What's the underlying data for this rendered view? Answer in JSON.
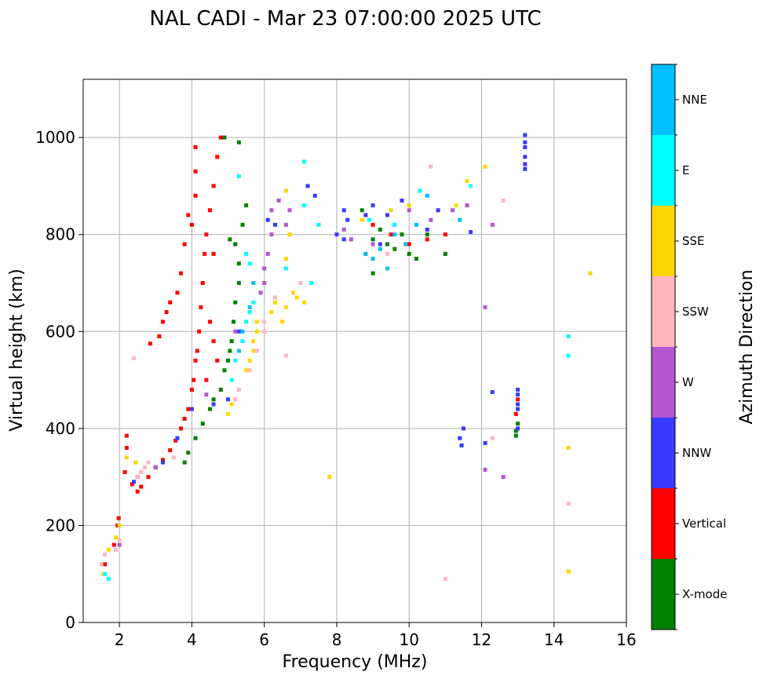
{
  "chart_data": {
    "type": "scatter",
    "title": "NAL CADI - Mar 23 07:00:00 2025 UTC",
    "xlabel": "Frequency (MHz)",
    "ylabel": "Virtual height (km)",
    "xlim": [
      1,
      16
    ],
    "ylim": [
      0,
      1120
    ],
    "xticks": [
      2,
      4,
      6,
      8,
      10,
      12,
      14,
      16
    ],
    "yticks": [
      0,
      200,
      400,
      600,
      800,
      1000
    ],
    "grid": true,
    "colorbar": {
      "label": "Azimuth Direction",
      "categories": [
        {
          "name": "X-mode",
          "color": "#008000"
        },
        {
          "name": "Vertical",
          "color": "#ff0000"
        },
        {
          "name": "NNW",
          "color": "#3a3aff"
        },
        {
          "name": "W",
          "color": "#b455d2"
        },
        {
          "name": "SSW",
          "color": "#ffb6c1"
        },
        {
          "name": "SSE",
          "color": "#ffd700"
        },
        {
          "name": "E",
          "color": "#00ffff"
        },
        {
          "name": "NNE",
          "color": "#00bfff"
        }
      ]
    },
    "series": [
      {
        "name": "Vertical",
        "points": [
          [
            1.6,
            120
          ],
          [
            1.85,
            160
          ],
          [
            1.95,
            200
          ],
          [
            1.98,
            215
          ],
          [
            2.15,
            310
          ],
          [
            2.2,
            360
          ],
          [
            2.2,
            385
          ],
          [
            2.35,
            285
          ],
          [
            2.5,
            270
          ],
          [
            2.6,
            280
          ],
          [
            2.8,
            300
          ],
          [
            3.0,
            320
          ],
          [
            3.2,
            335
          ],
          [
            3.4,
            355
          ],
          [
            3.55,
            375
          ],
          [
            3.7,
            400
          ],
          [
            3.8,
            420
          ],
          [
            3.9,
            440
          ],
          [
            4.0,
            480
          ],
          [
            4.05,
            500
          ],
          [
            4.1,
            540
          ],
          [
            4.15,
            560
          ],
          [
            4.2,
            600
          ],
          [
            4.25,
            650
          ],
          [
            4.3,
            700
          ],
          [
            4.35,
            760
          ],
          [
            4.4,
            800
          ],
          [
            4.5,
            850
          ],
          [
            4.6,
            900
          ],
          [
            4.7,
            960
          ],
          [
            4.8,
            1000
          ],
          [
            4.1,
            880
          ],
          [
            4.1,
            930
          ],
          [
            4.1,
            980
          ],
          [
            4.0,
            820
          ],
          [
            3.9,
            840
          ],
          [
            3.8,
            780
          ],
          [
            3.7,
            720
          ],
          [
            3.6,
            680
          ],
          [
            3.4,
            660
          ],
          [
            3.3,
            640
          ],
          [
            3.2,
            620
          ],
          [
            3.1,
            590
          ],
          [
            2.85,
            575
          ],
          [
            4.5,
            620
          ],
          [
            4.6,
            580
          ],
          [
            4.7,
            540
          ],
          [
            4.4,
            500
          ],
          [
            4.6,
            760
          ],
          [
            9.0,
            820
          ],
          [
            9.5,
            800
          ],
          [
            10.0,
            780
          ],
          [
            10.5,
            790
          ],
          [
            11.0,
            800
          ],
          [
            13.0,
            460
          ],
          [
            12.95,
            430
          ]
        ]
      },
      {
        "name": "X-mode",
        "points": [
          [
            3.8,
            330
          ],
          [
            3.9,
            350
          ],
          [
            4.1,
            380
          ],
          [
            4.3,
            410
          ],
          [
            4.5,
            440
          ],
          [
            4.6,
            460
          ],
          [
            4.8,
            480
          ],
          [
            4.9,
            520
          ],
          [
            5.0,
            540
          ],
          [
            5.05,
            560
          ],
          [
            5.1,
            580
          ],
          [
            5.15,
            620
          ],
          [
            5.2,
            660
          ],
          [
            5.3,
            700
          ],
          [
            5.3,
            740
          ],
          [
            5.2,
            780
          ],
          [
            5.05,
            790
          ],
          [
            5.4,
            820
          ],
          [
            5.5,
            860
          ],
          [
            4.9,
            1000
          ],
          [
            5.3,
            990
          ],
          [
            8.8,
            760
          ],
          [
            9.0,
            790
          ],
          [
            9.2,
            810
          ],
          [
            9.4,
            780
          ],
          [
            9.6,
            770
          ],
          [
            9.8,
            800
          ],
          [
            10.0,
            760
          ],
          [
            10.2,
            750
          ],
          [
            10.5,
            800
          ],
          [
            11.0,
            760
          ],
          [
            9.0,
            720
          ],
          [
            8.7,
            850
          ],
          [
            13.0,
            410
          ],
          [
            12.95,
            395
          ],
          [
            12.95,
            385
          ]
        ]
      },
      {
        "name": "NNW",
        "points": [
          [
            2.4,
            290
          ],
          [
            2.5,
            300
          ],
          [
            3.2,
            330
          ],
          [
            3.6,
            380
          ],
          [
            4.0,
            440
          ],
          [
            4.6,
            450
          ],
          [
            5.0,
            460
          ],
          [
            5.3,
            600
          ],
          [
            6.1,
            830
          ],
          [
            6.3,
            820
          ],
          [
            7.2,
            900
          ],
          [
            7.4,
            880
          ],
          [
            8.0,
            800
          ],
          [
            8.2,
            790
          ],
          [
            8.3,
            830
          ],
          [
            8.2,
            850
          ],
          [
            8.8,
            840
          ],
          [
            9.0,
            860
          ],
          [
            9.2,
            780
          ],
          [
            9.4,
            840
          ],
          [
            9.8,
            870
          ],
          [
            10.5,
            810
          ],
          [
            11.5,
            400
          ],
          [
            11.4,
            380
          ],
          [
            11.45,
            365
          ],
          [
            12.1,
            370
          ],
          [
            12.3,
            475
          ],
          [
            13.2,
            1005
          ],
          [
            13.2,
            990
          ],
          [
            13.2,
            980
          ],
          [
            13.2,
            960
          ],
          [
            13.2,
            945
          ],
          [
            13.2,
            935
          ],
          [
            13.0,
            480
          ],
          [
            13.0,
            470
          ],
          [
            13.0,
            450
          ],
          [
            13.0,
            440
          ],
          [
            13.0,
            400
          ],
          [
            11.7,
            805
          ],
          [
            10.8,
            850
          ]
        ]
      },
      {
        "name": "W",
        "points": [
          [
            2.0,
            160
          ],
          [
            3.0,
            320
          ],
          [
            4.4,
            470
          ],
          [
            5.2,
            600
          ],
          [
            5.9,
            680
          ],
          [
            6.0,
            700
          ],
          [
            6.0,
            730
          ],
          [
            6.1,
            760
          ],
          [
            6.2,
            800
          ],
          [
            6.2,
            850
          ],
          [
            6.4,
            870
          ],
          [
            6.7,
            850
          ],
          [
            6.6,
            820
          ],
          [
            8.2,
            810
          ],
          [
            8.4,
            790
          ],
          [
            9.0,
            780
          ],
          [
            9.6,
            820
          ],
          [
            10.0,
            850
          ],
          [
            10.6,
            830
          ],
          [
            11.2,
            850
          ],
          [
            11.6,
            860
          ],
          [
            12.3,
            820
          ],
          [
            12.1,
            650
          ],
          [
            12.6,
            300
          ],
          [
            12.1,
            315
          ]
        ]
      },
      {
        "name": "SSW",
        "points": [
          [
            1.5,
            120
          ],
          [
            1.6,
            140
          ],
          [
            1.9,
            150
          ],
          [
            2.0,
            170
          ],
          [
            2.5,
            300
          ],
          [
            2.6,
            310
          ],
          [
            2.7,
            320
          ],
          [
            2.8,
            330
          ],
          [
            3.5,
            340
          ],
          [
            5.2,
            460
          ],
          [
            5.3,
            480
          ],
          [
            5.6,
            520
          ],
          [
            5.8,
            560
          ],
          [
            6.0,
            600
          ],
          [
            6.0,
            620
          ],
          [
            6.3,
            670
          ],
          [
            6.6,
            550
          ],
          [
            7.0,
            700
          ],
          [
            9.4,
            760
          ],
          [
            10.6,
            940
          ],
          [
            11.0,
            90
          ],
          [
            12.6,
            870
          ],
          [
            14.4,
            245
          ],
          [
            2.4,
            545
          ],
          [
            12.3,
            380
          ]
        ]
      },
      {
        "name": "SSE",
        "points": [
          [
            1.55,
            100
          ],
          [
            1.7,
            150
          ],
          [
            1.9,
            175
          ],
          [
            2.0,
            200
          ],
          [
            2.2,
            340
          ],
          [
            2.45,
            330
          ],
          [
            5.0,
            430
          ],
          [
            5.1,
            450
          ],
          [
            5.5,
            520
          ],
          [
            5.6,
            540
          ],
          [
            5.7,
            560
          ],
          [
            5.7,
            580
          ],
          [
            5.8,
            600
          ],
          [
            5.8,
            620
          ],
          [
            6.2,
            640
          ],
          [
            6.3,
            660
          ],
          [
            6.5,
            620
          ],
          [
            6.6,
            650
          ],
          [
            6.8,
            680
          ],
          [
            6.6,
            750
          ],
          [
            6.7,
            800
          ],
          [
            6.6,
            890
          ],
          [
            6.9,
            670
          ],
          [
            7.1,
            660
          ],
          [
            7.8,
            300
          ],
          [
            8.7,
            830
          ],
          [
            9.5,
            850
          ],
          [
            10.0,
            860
          ],
          [
            11.3,
            860
          ],
          [
            11.6,
            910
          ],
          [
            12.1,
            940
          ],
          [
            14.4,
            360
          ],
          [
            14.4,
            105
          ],
          [
            15.0,
            720
          ]
        ]
      },
      {
        "name": "E",
        "points": [
          [
            1.6,
            100
          ],
          [
            1.7,
            90
          ],
          [
            5.1,
            500
          ],
          [
            5.2,
            540
          ],
          [
            5.4,
            580
          ],
          [
            5.5,
            620
          ],
          [
            5.6,
            640
          ],
          [
            5.7,
            660
          ],
          [
            5.3,
            920
          ],
          [
            5.5,
            760
          ],
          [
            5.6,
            740
          ],
          [
            6.6,
            730
          ],
          [
            7.1,
            950
          ],
          [
            7.1,
            860
          ],
          [
            7.3,
            700
          ],
          [
            7.5,
            820
          ],
          [
            8.9,
            830
          ],
          [
            9.6,
            820
          ],
          [
            10.3,
            890
          ],
          [
            11.7,
            900
          ],
          [
            14.4,
            590
          ],
          [
            14.4,
            550
          ]
        ]
      },
      {
        "name": "NNE",
        "points": [
          [
            5.3,
            560
          ],
          [
            5.4,
            600
          ],
          [
            5.6,
            650
          ],
          [
            5.7,
            700
          ],
          [
            8.8,
            760
          ],
          [
            9.0,
            750
          ],
          [
            9.2,
            770
          ],
          [
            9.4,
            730
          ],
          [
            9.6,
            800
          ],
          [
            9.9,
            780
          ],
          [
            10.2,
            820
          ],
          [
            10.5,
            880
          ],
          [
            11.4,
            830
          ]
        ]
      }
    ]
  }
}
